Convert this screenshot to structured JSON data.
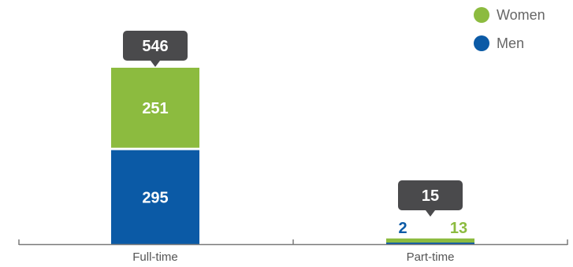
{
  "chart_data": {
    "type": "bar",
    "stacked": true,
    "categories": [
      "Full-time",
      "Part-time"
    ],
    "series": [
      {
        "name": "Men",
        "values": [
          295,
          2
        ],
        "color": "#0b5aa6"
      },
      {
        "name": "Women",
        "values": [
          251,
          13
        ],
        "color": "#8cbb3f"
      }
    ],
    "totals": [
      546,
      15
    ],
    "legend": {
      "position": "top-right",
      "items": [
        {
          "label": "Women",
          "color": "#8cbb3f"
        },
        {
          "label": "Men",
          "color": "#0b5aa6"
        }
      ]
    },
    "tooltip_color": "#4a4a4c",
    "axis_color": "#7a7a7a",
    "grid": false
  }
}
